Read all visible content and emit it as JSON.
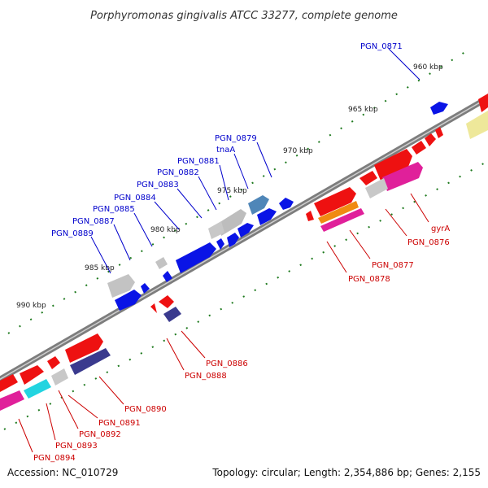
{
  "title": "Porphyromonas gingivalis ATCC 33277, complete genome",
  "footer": {
    "accession": "Accession: NC_010729",
    "topology": "Topology: circular; Length: 2,354,886 bp; Genes: 2,155"
  },
  "colors": {
    "backbone": "#808080",
    "forward_label": "#0000cc",
    "reverse_label": "#cc0000",
    "tick": "#1e7a1e",
    "blue": "#0a14e6",
    "red": "#ee1111",
    "gray": "#bdbdbd",
    "steel": "#4f86b8",
    "navy": "#3a3a8e",
    "magenta": "#e0209a",
    "orange": "#f08a12",
    "cyan": "#22d4e0",
    "khaki": "#eee89a"
  },
  "ticks": [
    "960 kbp",
    "965 kbp",
    "970 kbp",
    "975 kbp",
    "980 kbp",
    "985 kbp",
    "990 kbp"
  ],
  "forward_labels": [
    "PGN_0871",
    "PGN_0879",
    "tnaA",
    "PGN_0881",
    "PGN_0882",
    "PGN_0883",
    "PGN_0884",
    "PGN_0885",
    "PGN_0887",
    "PGN_0889"
  ],
  "reverse_labels": [
    "gyrA",
    "PGN_0876",
    "PGN_0877",
    "PGN_0878",
    "PGN_0886",
    "PGN_0888",
    "PGN_0890",
    "PGN_0891",
    "PGN_0892",
    "PGN_0893",
    "PGN_0894"
  ]
}
